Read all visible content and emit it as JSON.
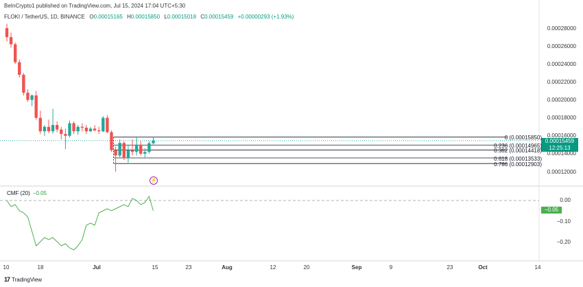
{
  "publisher": "BeInCrypto1 published on TradingView.com, Jul 15, 2024 17:04 UTC+5:30",
  "legend": {
    "symbol": "FLOKI / TetherUS, 1D, BINANCE",
    "o_label": "O",
    "o_value": "0.00015165",
    "h_label": "H",
    "h_value": "0.00015850",
    "l_label": "L",
    "l_value": "0.00015018",
    "c_label": "C",
    "c_value": "0.00015459",
    "change": "+0.00000293 (+1.93%)"
  },
  "price_axis": [
    "0.00028000",
    "0.00026000",
    "0.00024000",
    "0.00022000",
    "0.00020000",
    "0.00018000",
    "0.00016000",
    "0.00014000",
    "0.00012000"
  ],
  "current_price": {
    "price": "0.00015459",
    "countdown": "12:25:13"
  },
  "fib_levels": [
    {
      "label": "0 (0.00015850)",
      "value": 0.0001585
    },
    {
      "label": "0.236 (0.00014965)",
      "value": 0.00014965
    },
    {
      "label": "0.382 (0.00014418)",
      "value": 0.00014418
    },
    {
      "label": "0.618 (0.00013533)",
      "value": 0.00013533
    },
    {
      "label": "0.786 (0.00012903)",
      "value": 0.00012903
    }
  ],
  "cmf": {
    "title": "CMF (20)",
    "value": "−0.05",
    "axis": [
      "0.00",
      "−0.10",
      "−0.20"
    ]
  },
  "time_axis": [
    {
      "label": "10",
      "bold": false
    },
    {
      "label": "18",
      "bold": false
    },
    {
      "label": "Jul",
      "bold": true
    },
    {
      "label": "15",
      "bold": false
    },
    {
      "label": "23",
      "bold": false
    },
    {
      "label": "Aug",
      "bold": true
    },
    {
      "label": "12",
      "bold": false
    },
    {
      "label": "20",
      "bold": false
    },
    {
      "label": "Sep",
      "bold": true
    },
    {
      "label": "9",
      "bold": false
    },
    {
      "label": "23",
      "bold": false
    },
    {
      "label": "Oct",
      "bold": true
    },
    {
      "label": "14",
      "bold": false
    }
  ],
  "footer": {
    "brand": "TradingView",
    "logo": "17"
  },
  "colors": {
    "up": "#26a69a",
    "down": "#ef5350",
    "accent": "#089981",
    "cmf_line": "#4caf50",
    "fib": "#131722"
  },
  "chart_data": {
    "type": "candlestick",
    "ylim": [
      0.000105,
      0.000295
    ],
    "candles": [
      {
        "o": 0.00028,
        "h": 0.000285,
        "l": 0.000265,
        "c": 0.00027
      },
      {
        "o": 0.00027,
        "h": 0.000275,
        "l": 0.000258,
        "c": 0.000262
      },
      {
        "o": 0.000262,
        "h": 0.000264,
        "l": 0.00024,
        "c": 0.000242
      },
      {
        "o": 0.000242,
        "h": 0.000245,
        "l": 0.000225,
        "c": 0.000228
      },
      {
        "o": 0.000228,
        "h": 0.00023,
        "l": 0.000205,
        "c": 0.000208
      },
      {
        "o": 0.000208,
        "h": 0.000212,
        "l": 0.000198,
        "c": 0.0002
      },
      {
        "o": 0.0002,
        "h": 0.000206,
        "l": 0.000193,
        "c": 0.000205
      },
      {
        "o": 0.000205,
        "h": 0.00021,
        "l": 0.000178,
        "c": 0.00018
      },
      {
        "o": 0.00018,
        "h": 0.000188,
        "l": 0.000162,
        "c": 0.000165
      },
      {
        "o": 0.000165,
        "h": 0.000172,
        "l": 0.00016,
        "c": 0.00017
      },
      {
        "o": 0.00017,
        "h": 0.000178,
        "l": 0.000163,
        "c": 0.000165
      },
      {
        "o": 0.000165,
        "h": 0.00019,
        "l": 0.000162,
        "c": 0.000172
      },
      {
        "o": 0.000172,
        "h": 0.000176,
        "l": 0.000164,
        "c": 0.000167
      },
      {
        "o": 0.000167,
        "h": 0.00017,
        "l": 0.000156,
        "c": 0.000162
      },
      {
        "o": 0.000162,
        "h": 0.000168,
        "l": 0.000145,
        "c": 0.00016
      },
      {
        "o": 0.00016,
        "h": 0.000177,
        "l": 0.000158,
        "c": 0.000174
      },
      {
        "o": 0.000174,
        "h": 0.000176,
        "l": 0.000162,
        "c": 0.000165
      },
      {
        "o": 0.000165,
        "h": 0.000172,
        "l": 0.000161,
        "c": 0.00017
      },
      {
        "o": 0.00017,
        "h": 0.000174,
        "l": 0.000165,
        "c": 0.000169
      },
      {
        "o": 0.000169,
        "h": 0.000172,
        "l": 0.000162,
        "c": 0.000165
      },
      {
        "o": 0.000165,
        "h": 0.00017,
        "l": 0.000164,
        "c": 0.000168
      },
      {
        "o": 0.000168,
        "h": 0.000172,
        "l": 0.000165,
        "c": 0.000166
      },
      {
        "o": 0.000166,
        "h": 0.00017,
        "l": 0.000162,
        "c": 0.000165
      },
      {
        "o": 0.000165,
        "h": 0.000182,
        "l": 0.000164,
        "c": 0.00018
      },
      {
        "o": 0.00018,
        "h": 0.000183,
        "l": 0.000163,
        "c": 0.000164
      },
      {
        "o": 0.000164,
        "h": 0.000166,
        "l": 0.000142,
        "c": 0.000144
      },
      {
        "o": 0.000144,
        "h": 0.000148,
        "l": 0.00012,
        "c": 0.000138
      },
      {
        "o": 0.000138,
        "h": 0.000156,
        "l": 0.000136,
        "c": 0.000152
      },
      {
        "o": 0.000152,
        "h": 0.000154,
        "l": 0.000133,
        "c": 0.000135
      },
      {
        "o": 0.000135,
        "h": 0.00015,
        "l": 0.00013,
        "c": 0.000144
      },
      {
        "o": 0.000144,
        "h": 0.000156,
        "l": 0.000138,
        "c": 0.000142
      },
      {
        "o": 0.000142,
        "h": 0.000158,
        "l": 0.000138,
        "c": 0.00015
      },
      {
        "o": 0.00015,
        "h": 0.000154,
        "l": 0.000138,
        "c": 0.00014
      },
      {
        "o": 0.00014,
        "h": 0.000146,
        "l": 0.000136,
        "c": 0.000142
      },
      {
        "o": 0.000142,
        "h": 0.000154,
        "l": 0.00014,
        "c": 0.0001517
      },
      {
        "o": 0.00015165,
        "h": 0.0001585,
        "l": 0.00015018,
        "c": 0.00015459
      }
    ],
    "cmf_ylim": [
      -0.26,
      0.03
    ],
    "cmf_values": [
      0.0,
      -0.03,
      -0.02,
      -0.05,
      -0.06,
      -0.08,
      -0.15,
      -0.22,
      -0.2,
      -0.18,
      -0.19,
      -0.18,
      -0.2,
      -0.22,
      -0.21,
      -0.23,
      -0.24,
      -0.22,
      -0.19,
      -0.12,
      -0.11,
      -0.12,
      -0.06,
      -0.05,
      -0.04,
      -0.05,
      -0.04,
      -0.03,
      -0.02,
      -0.03,
      0.01,
      0.0,
      -0.02,
      -0.01,
      0.02,
      -0.05
    ]
  }
}
